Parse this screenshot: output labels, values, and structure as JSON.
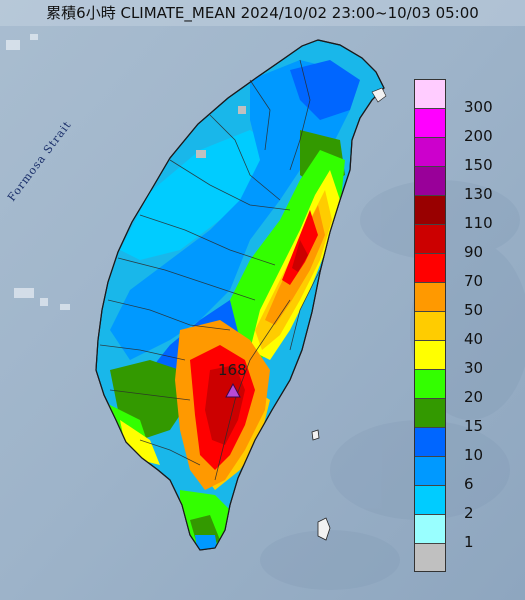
{
  "title": "累積6小時 CLIMATE_MEAN 2024/10/02 23:00~10/03 05:00",
  "strait_label": "Formosa Strait",
  "peak": {
    "value": "168"
  },
  "legend": {
    "steps": [
      {
        "label": "300",
        "color": "#ffccff"
      },
      {
        "label": "200",
        "color": "#ff00ff"
      },
      {
        "label": "150",
        "color": "#cc00cc"
      },
      {
        "label": "130",
        "color": "#990099"
      },
      {
        "label": "110",
        "color": "#990000"
      },
      {
        "label": "90",
        "color": "#cc0000"
      },
      {
        "label": "70",
        "color": "#ff0000"
      },
      {
        "label": "50",
        "color": "#ff9900"
      },
      {
        "label": "40",
        "color": "#ffcc00"
      },
      {
        "label": "30",
        "color": "#ffff00"
      },
      {
        "label": "20",
        "color": "#33ff00"
      },
      {
        "label": "15",
        "color": "#339900"
      },
      {
        "label": "10",
        "color": "#0066ff"
      },
      {
        "label": "6",
        "color": "#0099ff"
      },
      {
        "label": "2",
        "color": "#00ccff"
      },
      {
        "label": "1",
        "color": "#99ffff"
      },
      {
        "label": "",
        "color": "#c0c0c0"
      }
    ]
  }
}
